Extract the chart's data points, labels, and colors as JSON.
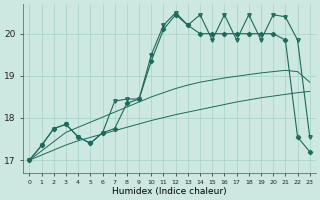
{
  "xlabel": "Humidex (Indice chaleur)",
  "bg_color": "#cce8e0",
  "grid_color": "#a8d0c8",
  "line_color": "#1a6b5a",
  "xlim": [
    -0.5,
    23.5
  ],
  "ylim": [
    16.7,
    20.7
  ],
  "yticks": [
    17,
    18,
    19,
    20
  ],
  "xticks": [
    0,
    1,
    2,
    3,
    4,
    5,
    6,
    7,
    8,
    9,
    10,
    11,
    12,
    13,
    14,
    15,
    16,
    17,
    18,
    19,
    20,
    21,
    22,
    23
  ],
  "y_main": [
    17.0,
    17.35,
    17.75,
    17.85,
    17.55,
    17.4,
    17.65,
    17.75,
    18.35,
    18.45,
    19.35,
    20.1,
    20.45,
    20.2,
    20.0,
    20.0,
    20.0,
    20.0,
    20.0,
    20.0,
    20.0,
    19.85,
    17.55,
    17.2
  ],
  "y_zigzag": [
    17.0,
    17.35,
    17.75,
    17.85,
    17.55,
    17.4,
    17.65,
    18.4,
    18.45,
    18.45,
    19.5,
    20.2,
    20.5,
    20.2,
    20.45,
    19.85,
    20.45,
    19.85,
    20.45,
    19.85,
    20.45,
    20.4,
    19.85,
    17.55
  ],
  "y_linear_upper": [
    17.0,
    17.22,
    17.44,
    17.66,
    17.78,
    17.9,
    18.02,
    18.14,
    18.26,
    18.38,
    18.5,
    18.6,
    18.7,
    18.78,
    18.85,
    18.9,
    18.95,
    18.99,
    19.03,
    19.07,
    19.1,
    19.13,
    19.1,
    18.85
  ],
  "y_linear_lower": [
    17.0,
    17.12,
    17.24,
    17.36,
    17.46,
    17.54,
    17.62,
    17.7,
    17.78,
    17.86,
    17.94,
    18.01,
    18.08,
    18.14,
    18.2,
    18.26,
    18.32,
    18.38,
    18.43,
    18.48,
    18.52,
    18.56,
    18.6,
    18.63
  ]
}
